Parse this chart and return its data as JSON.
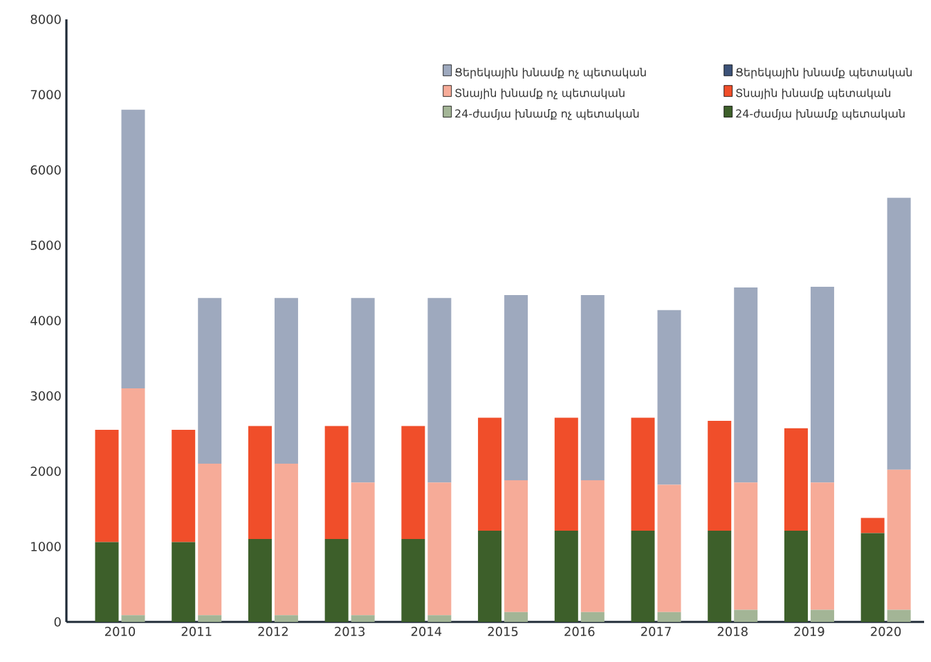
{
  "chart_data": [
    {
      "type": "bar",
      "stacked": true,
      "categories": [
        "2010",
        "2011",
        "2012",
        "2013",
        "2014",
        "2015",
        "2016",
        "2017",
        "2018",
        "2019",
        "2020"
      ],
      "series": [
        {
          "name": "24-ժամյա խնամք պետական",
          "color": "#3d5f2a",
          "values": [
            1060,
            1060,
            1100,
            1100,
            1100,
            1210,
            1210,
            1210,
            1210,
            1210,
            1180
          ]
        },
        {
          "name": "Տնային խնամք պետական",
          "color": "#f04e2a",
          "values": [
            1490,
            1490,
            1500,
            1500,
            1500,
            1500,
            1500,
            1500,
            1460,
            1360,
            200
          ]
        },
        {
          "name": "Ցերեկային խնամք պետական",
          "color": "#3c5278",
          "values": [
            0,
            0,
            0,
            0,
            0,
            0,
            0,
            0,
            0,
            0,
            0
          ]
        }
      ],
      "ylim": [
        0,
        8000
      ],
      "yticks": [
        0,
        1000,
        2000,
        3000,
        4000,
        5000,
        6000,
        7000,
        8000
      ],
      "legend": "top right"
    },
    {
      "type": "bar",
      "stacked": true,
      "categories": [
        "2010",
        "2011",
        "2012",
        "2013",
        "2014",
        "2015",
        "2016",
        "2017",
        "2018",
        "2019",
        "2020"
      ],
      "series": [
        {
          "name": "24-ժամյա խնամք ոչ պետական",
          "color": "#a3b596",
          "values": [
            90,
            90,
            90,
            90,
            90,
            130,
            130,
            130,
            160,
            160,
            160
          ]
        },
        {
          "name": "Տնային խնամք ոչ պետական",
          "color": "#f6ab98",
          "values": [
            3010,
            2010,
            2010,
            1760,
            1760,
            1750,
            1750,
            1690,
            1690,
            1690,
            1860
          ]
        },
        {
          "name": "Ցերեկային խնամք ոչ պետական",
          "color": "#9ea9be",
          "values": [
            3700,
            2200,
            2200,
            2450,
            2450,
            2460,
            2460,
            2320,
            2590,
            2600,
            3610
          ]
        }
      ],
      "ylim": [
        0,
        8000
      ],
      "tick_labels": false,
      "legend": "top right"
    }
  ]
}
